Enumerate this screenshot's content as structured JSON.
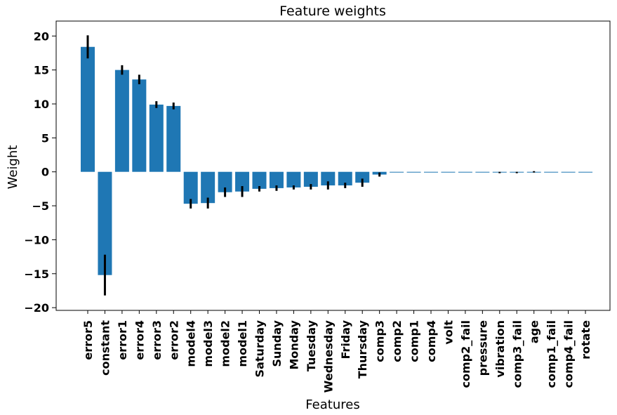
{
  "chart_data": {
    "type": "bar",
    "title": "Feature weights",
    "xlabel": "Features",
    "ylabel": "Weight",
    "ylim": [
      -20.4,
      22.2
    ],
    "yticks": [
      20,
      15,
      10,
      5,
      0,
      -5,
      -10,
      -15,
      -20
    ],
    "ytick_labels": [
      "20",
      "15",
      "10",
      "5",
      "0",
      "−5",
      "−10",
      "−15",
      "−20"
    ],
    "bar_color": "#1f77b4",
    "error_color": "#000000",
    "grid": false,
    "categories": [
      "error5",
      "constant",
      "error1",
      "error4",
      "error3",
      "error2",
      "model4",
      "model3",
      "model2",
      "model1",
      "Saturday",
      "Sunday",
      "Monday",
      "Tuesday",
      "Wednesday",
      "Friday",
      "Thursday",
      "comp3",
      "comp2",
      "comp1",
      "comp4",
      "volt",
      "comp2_fail",
      "pressure",
      "vibration",
      "comp3_fail",
      "age",
      "comp1_fail",
      "comp4_fail",
      "rotate"
    ],
    "values": [
      18.4,
      -15.2,
      15.0,
      13.6,
      9.9,
      9.7,
      -4.7,
      -4.6,
      -3.0,
      -2.9,
      -2.5,
      -2.4,
      -2.3,
      -2.2,
      -2.0,
      -2.0,
      -1.6,
      -0.4,
      -0.1,
      -0.1,
      -0.1,
      0.0,
      -0.1,
      0.0,
      -0.1,
      -0.1,
      0.0,
      0.0,
      0.0,
      0.0
    ],
    "errors": [
      1.7,
      3.0,
      0.7,
      0.7,
      0.5,
      0.5,
      0.7,
      0.8,
      0.7,
      0.8,
      0.4,
      0.4,
      0.3,
      0.4,
      0.6,
      0.4,
      0.6,
      0.3,
      0.0,
      0.0,
      0.0,
      0.0,
      0.0,
      0.0,
      0.1,
      0.1,
      0.1,
      0.0,
      0.0,
      0.0
    ]
  }
}
